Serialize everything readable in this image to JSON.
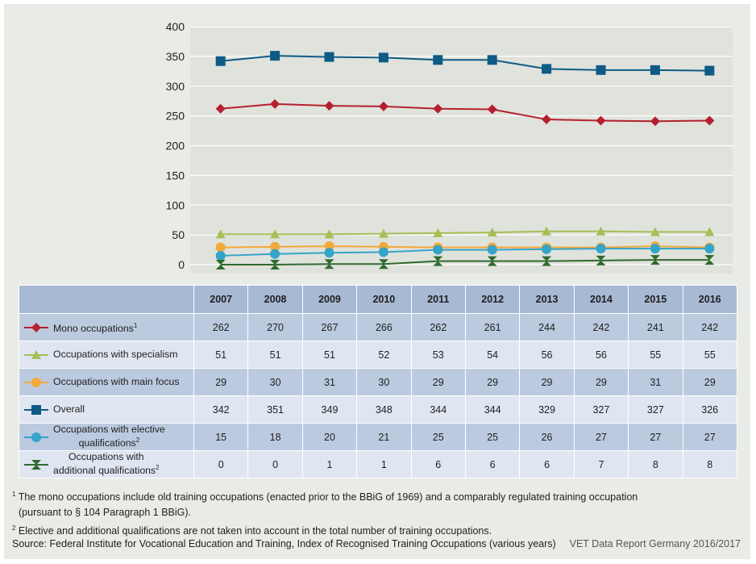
{
  "chart_data": {
    "type": "line",
    "categories": [
      "2007",
      "2008",
      "2009",
      "2010",
      "2011",
      "2012",
      "2013",
      "2014",
      "2015",
      "2016"
    ],
    "ylim": [
      0,
      400
    ],
    "yticks": [
      0,
      50,
      100,
      150,
      200,
      250,
      300,
      350,
      400
    ],
    "grid": true,
    "series": [
      {
        "key": "mono",
        "name": "Mono occupations",
        "footnote": "1",
        "color": "#b5202f",
        "marker": "diamond",
        "values": [
          262,
          270,
          267,
          266,
          262,
          261,
          244,
          242,
          241,
          242
        ]
      },
      {
        "key": "specialism",
        "name": "Occupations with specialism",
        "footnote": "",
        "color": "#a5bf54",
        "marker": "triangle",
        "values": [
          51,
          51,
          51,
          52,
          53,
          54,
          56,
          56,
          55,
          55
        ]
      },
      {
        "key": "mainfocus",
        "name": "Occupations with main focus",
        "footnote": "",
        "color": "#f2a93b",
        "marker": "circle",
        "values": [
          29,
          30,
          31,
          30,
          29,
          29,
          29,
          29,
          31,
          29
        ]
      },
      {
        "key": "overall",
        "name": "Overall",
        "footnote": "",
        "color": "#0e5b86",
        "marker": "square",
        "values": [
          342,
          351,
          349,
          348,
          344,
          344,
          329,
          327,
          327,
          326
        ]
      },
      {
        "key": "elective",
        "name_line1": "Occupations with elective",
        "name_line2": "qualifications",
        "footnote": "2",
        "color": "#34a4c9",
        "marker": "circle",
        "values": [
          15,
          18,
          20,
          21,
          25,
          25,
          26,
          27,
          27,
          27
        ]
      },
      {
        "key": "additional",
        "name_line1": "Occupations with",
        "name_line2": "additional qualifications",
        "footnote": "2",
        "color": "#2f6a2e",
        "marker": "hourglass",
        "values": [
          0,
          0,
          1,
          1,
          6,
          6,
          6,
          7,
          8,
          8
        ]
      }
    ]
  },
  "notes": {
    "note1_sup": "1",
    "note1_line1": " The mono occupations include old training occupations (enacted prior to the BBiG of 1969) and a comparably regulated training occupation",
    "note1_line2": "(pursuant to § 104 Paragraph 1 BBiG).",
    "note2_sup": "2",
    "note2_line1": " Elective and additional qualifications are not taken into account in the total number of training occupations.",
    "source": "Source: Federal Institute for Vocational Education and Training, Index of Recognised Training Occupations (various years)",
    "report": "VET Data Report Germany 2016/2017"
  }
}
